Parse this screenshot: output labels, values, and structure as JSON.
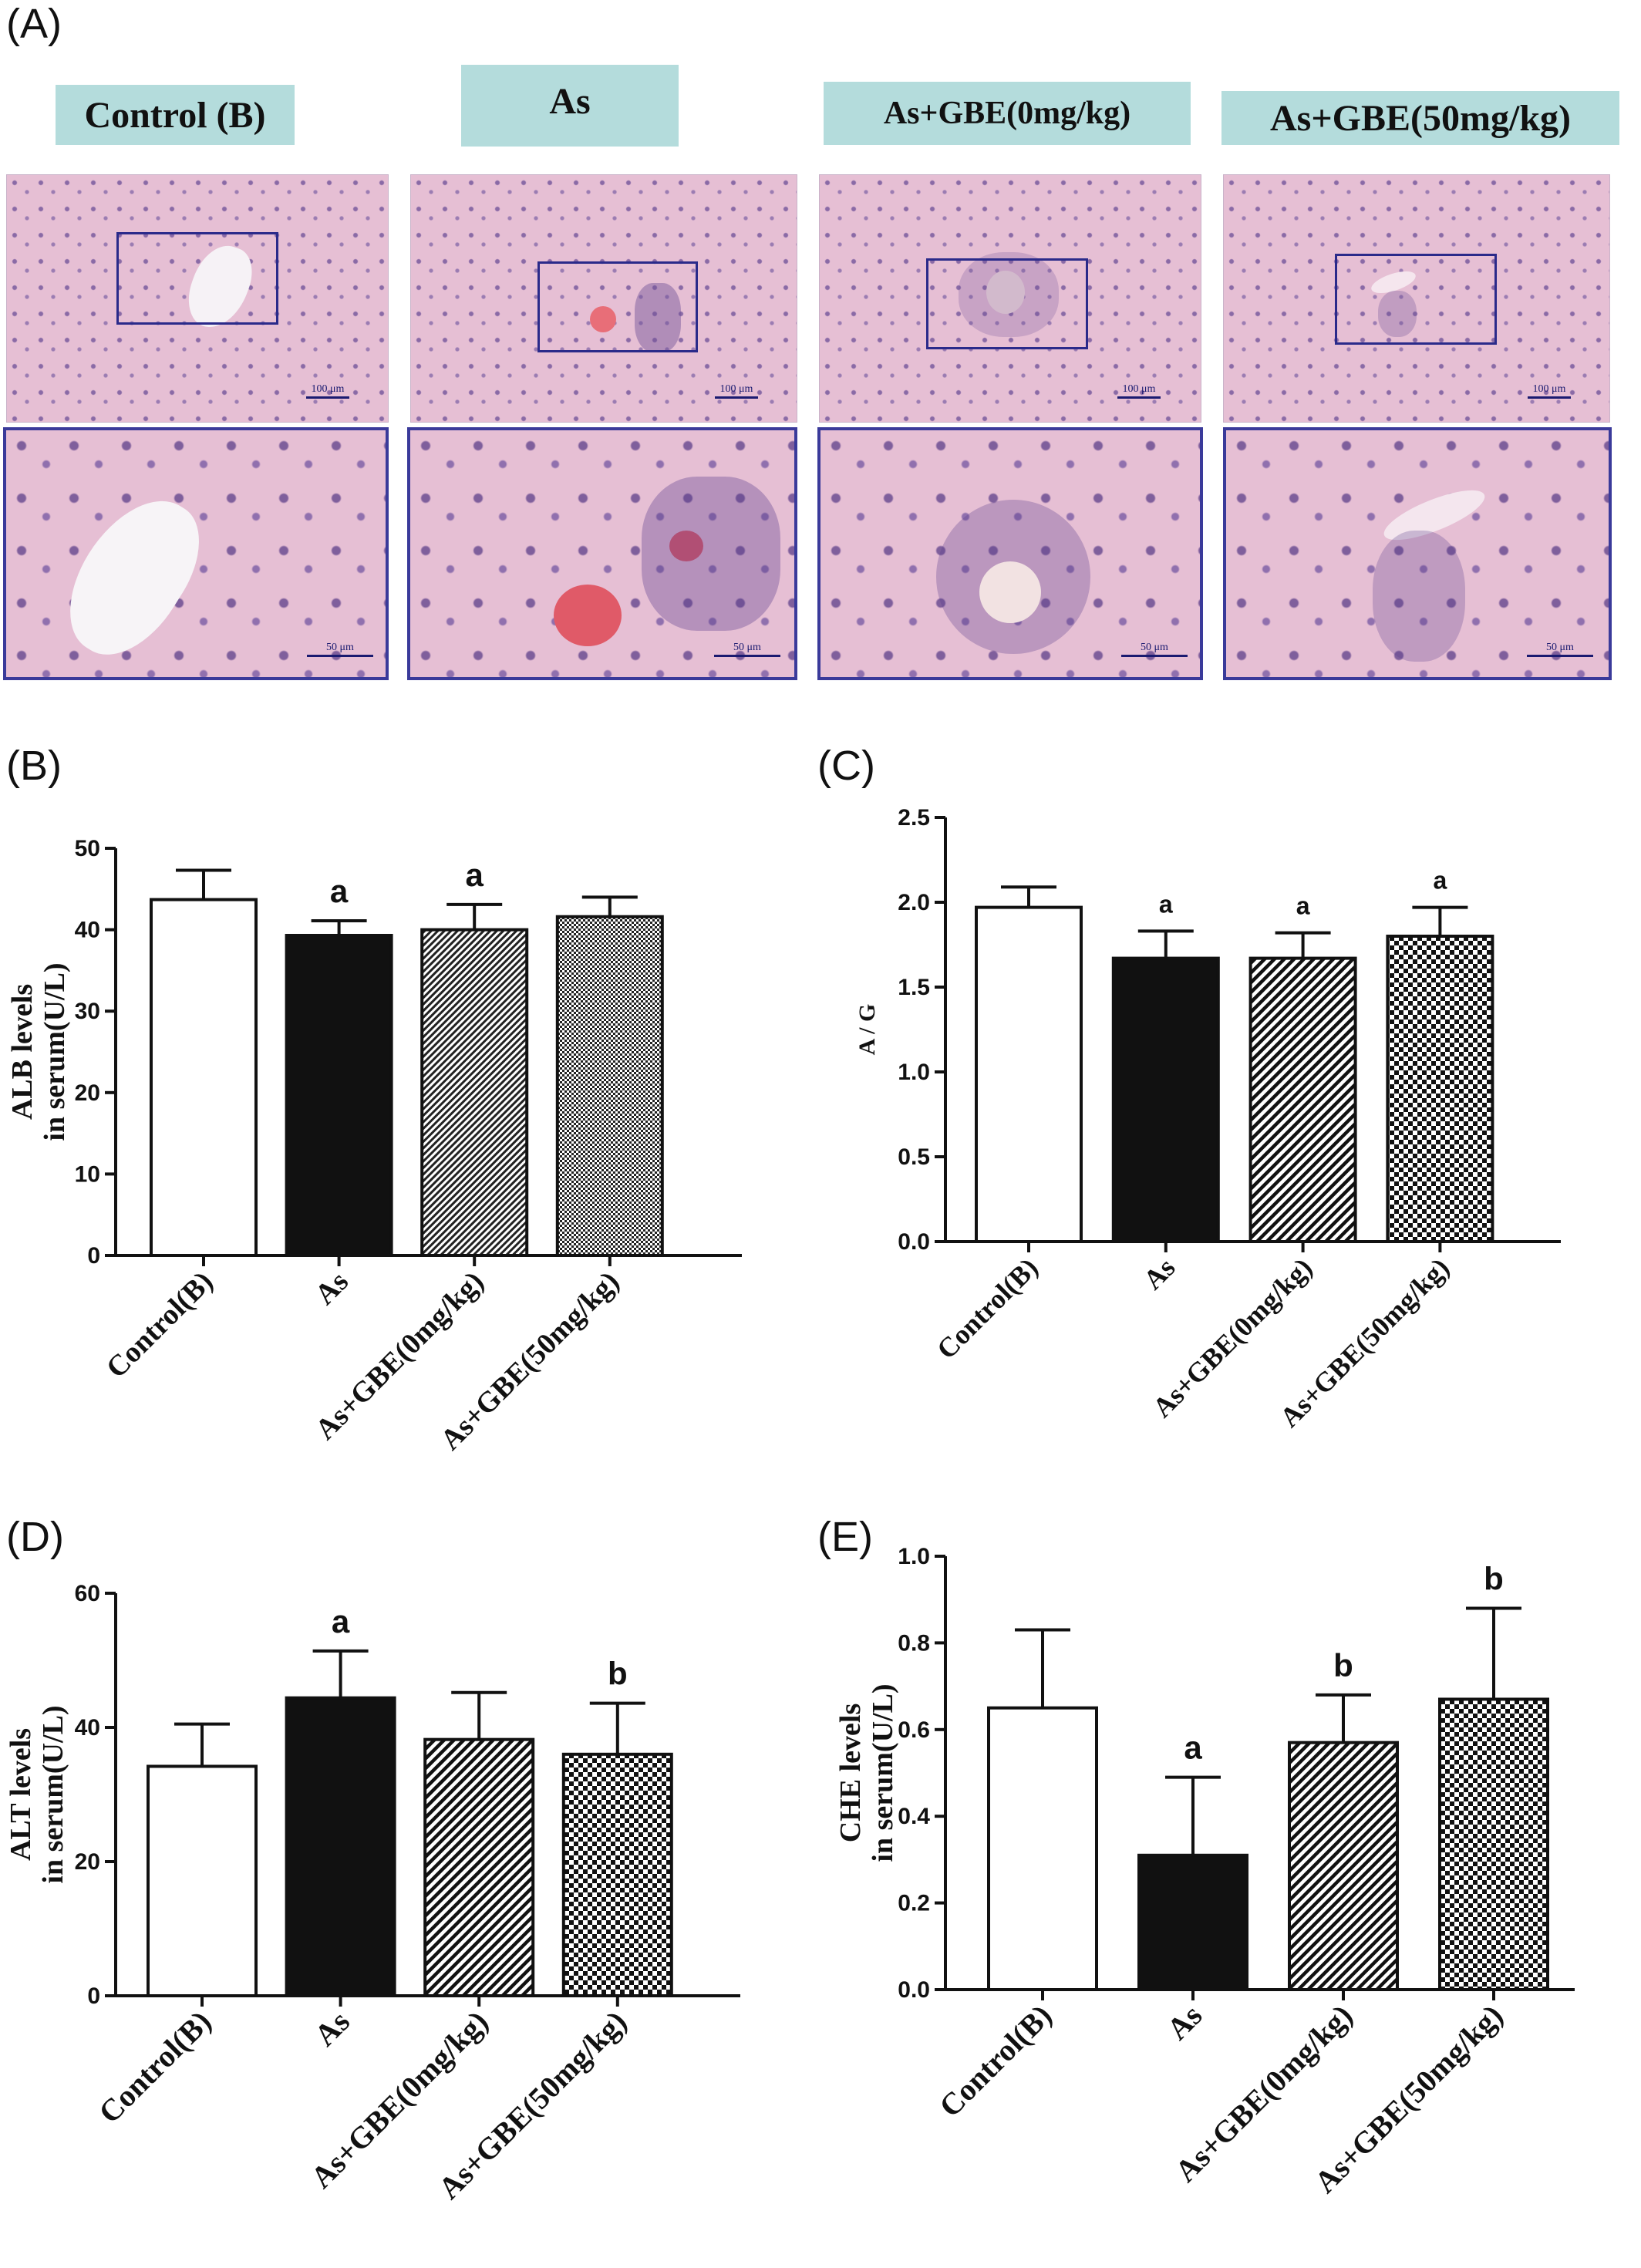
{
  "figure": {
    "panel_a": {
      "letter": "(A)",
      "labels": [
        "Control (B)",
        "As",
        "As+GBE(0mg/kg)",
        "As+GBE(50mg/kg)"
      ],
      "scale_top": "100 μm",
      "scale_bottom": "50 μm"
    }
  },
  "chart_data": [
    {
      "panel": "(B)",
      "type": "bar",
      "categories": [
        "Control(B)",
        "As",
        "As+GBE(0mg/kg)",
        "As+GBE(50mg/kg)"
      ],
      "series": [
        {
          "values": [
            43.7,
            39.3,
            40.0,
            41.6
          ],
          "errors": [
            3.6,
            1.8,
            3.1,
            2.4
          ]
        }
      ],
      "annotations": [
        "",
        "a",
        "a",
        ""
      ],
      "ylabel": [
        "ALB levels",
        "in serum(U/L)"
      ],
      "ylim": [
        0,
        50
      ],
      "yticks": [
        0,
        10,
        20,
        30,
        40,
        50
      ],
      "patterns": [
        "white",
        "black",
        "diag-dense",
        "checker-fine"
      ]
    },
    {
      "panel": "(C)",
      "type": "bar",
      "categories": [
        "Control(B)",
        "As",
        "As+GBE(0mg/kg)",
        "As+GBE(50mg/kg)"
      ],
      "series": [
        {
          "values": [
            1.97,
            1.67,
            1.67,
            1.8
          ],
          "errors": [
            0.12,
            0.16,
            0.15,
            0.17
          ]
        }
      ],
      "annotations": [
        "",
        "a",
        "a",
        "a"
      ],
      "ylabel": [
        "A / G"
      ],
      "ylim": [
        0,
        2.5
      ],
      "yticks": [
        0.0,
        0.5,
        1.0,
        1.5,
        2.0,
        2.5
      ],
      "patterns": [
        "white",
        "black",
        "diag",
        "checker"
      ]
    },
    {
      "panel": "(D)",
      "type": "bar",
      "categories": [
        "Control(B)",
        "As",
        "As+GBE(0mg/kg)",
        "As+GBE(50mg/kg)"
      ],
      "series": [
        {
          "values": [
            34.2,
            44.4,
            38.2,
            36.0
          ],
          "errors": [
            6.3,
            7.0,
            7.0,
            7.6
          ]
        }
      ],
      "annotations": [
        "",
        "a",
        "",
        "b"
      ],
      "ylabel": [
        "ALT levels",
        "in serum(U/L)"
      ],
      "ylim": [
        0,
        60
      ],
      "yticks": [
        0,
        20,
        40,
        60
      ],
      "patterns": [
        "white",
        "black",
        "diag",
        "checker"
      ]
    },
    {
      "panel": "(E)",
      "type": "bar",
      "categories": [
        "Control(B)",
        "As",
        "As+GBE(0mg/kg)",
        "As+GBE(50mg/kg)"
      ],
      "series": [
        {
          "values": [
            0.65,
            0.31,
            0.57,
            0.67
          ],
          "errors": [
            0.18,
            0.18,
            0.11,
            0.21
          ]
        }
      ],
      "annotations": [
        "",
        "a",
        "b",
        "b"
      ],
      "ylabel": [
        "CHE levels",
        "in serum(U/L)"
      ],
      "ylim": [
        0,
        1.0
      ],
      "yticks": [
        0.0,
        0.2,
        0.4,
        0.6,
        0.8,
        1.0
      ],
      "patterns": [
        "white",
        "black",
        "diag",
        "checker"
      ]
    }
  ]
}
